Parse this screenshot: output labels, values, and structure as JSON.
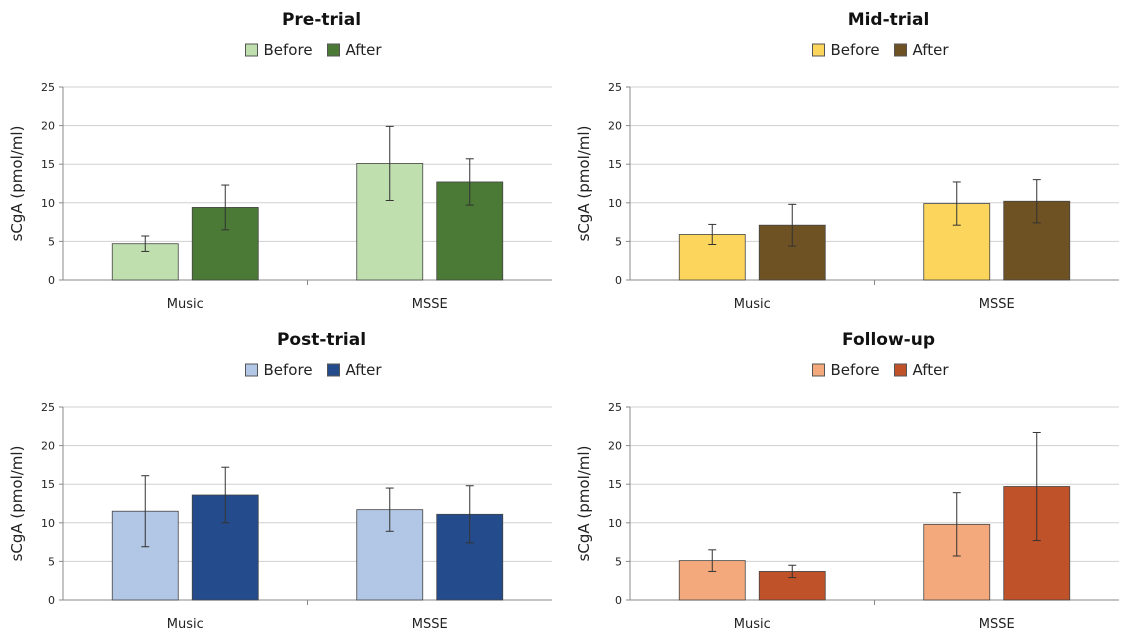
{
  "figure": {
    "ylabel": "sCgA (pmol/ml)"
  },
  "chart_data": [
    {
      "type": "bar",
      "title": "Pre-trial",
      "categories": [
        "Music",
        "MSSE"
      ],
      "ylabel": "sCgA (pmol/ml)",
      "ylim": [
        0,
        25
      ],
      "yticks": [
        0,
        5,
        10,
        15,
        20,
        25
      ],
      "grid": true,
      "legend": "top",
      "series": [
        {
          "name": "Before",
          "color": "#c0dfae",
          "values": [
            4.7,
            15.1
          ],
          "errors": [
            1.0,
            4.8
          ]
        },
        {
          "name": "After",
          "color": "#4a7a35",
          "values": [
            9.4,
            12.7
          ],
          "errors": [
            2.9,
            3.0
          ]
        }
      ]
    },
    {
      "type": "bar",
      "title": "Mid-trial",
      "categories": [
        "Music",
        "MSSE"
      ],
      "ylabel": "sCgA (pmol/ml)",
      "ylim": [
        0,
        25
      ],
      "yticks": [
        0,
        5,
        10,
        15,
        20,
        25
      ],
      "grid": true,
      "legend": "top",
      "series": [
        {
          "name": "Before",
          "color": "#fcd55c",
          "values": [
            5.9,
            9.9
          ],
          "errors": [
            1.3,
            2.8
          ]
        },
        {
          "name": "After",
          "color": "#6e5223",
          "values": [
            7.1,
            10.2
          ],
          "errors": [
            2.7,
            2.8
          ]
        }
      ]
    },
    {
      "type": "bar",
      "title": "Post-trial",
      "categories": [
        "Music",
        "MSSE"
      ],
      "ylabel": "sCgA (pmol/ml)",
      "ylim": [
        0,
        25
      ],
      "yticks": [
        0,
        5,
        10,
        15,
        20,
        25
      ],
      "grid": true,
      "legend": "top",
      "series": [
        {
          "name": "Before",
          "color": "#b2c6e6",
          "values": [
            11.5,
            11.7
          ],
          "errors": [
            4.6,
            2.8
          ]
        },
        {
          "name": "After",
          "color": "#244c8c",
          "values": [
            13.6,
            11.1
          ],
          "errors": [
            3.6,
            3.7
          ]
        }
      ]
    },
    {
      "type": "bar",
      "title": "Follow-up",
      "categories": [
        "Music",
        "MSSE"
      ],
      "ylabel": "sCgA (pmol/ml)",
      "ylim": [
        0,
        25
      ],
      "yticks": [
        0,
        5,
        10,
        15,
        20,
        25
      ],
      "grid": true,
      "legend": "top",
      "series": [
        {
          "name": "Before",
          "color": "#f4a97c",
          "values": [
            5.1,
            9.8
          ],
          "errors": [
            1.4,
            4.1
          ]
        },
        {
          "name": "After",
          "color": "#c0522a",
          "values": [
            3.7,
            14.7
          ],
          "errors": [
            0.8,
            7.0
          ]
        }
      ]
    }
  ]
}
